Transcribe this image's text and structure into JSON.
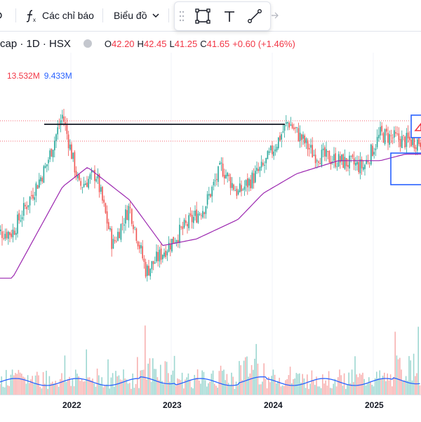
{
  "toolbar": {
    "indicators_label": "Các chỉ báo",
    "chart_type_label": "Biểu đồ"
  },
  "legend": {
    "symbol": "cap · 1D · HSX",
    "o_label": "O",
    "o_value": "42.20",
    "h_label": "H",
    "h_value": "42.45",
    "l_label": "L",
    "l_value": "41.25",
    "c_label": "C",
    "c_value": "41.65",
    "change": "+0.60 (+1.46%)"
  },
  "volume": {
    "value1": "13.532M",
    "value2": "9.433M"
  },
  "x_axis": {
    "labels": [
      "2022",
      "2023",
      "2024",
      "2025"
    ]
  },
  "colors": {
    "up": "#26a69a",
    "down": "#ef5350",
    "ma": "#9c27b0",
    "vol_ma": "#2962ff",
    "accent_red": "#f23645",
    "accent_blue": "#2962ff"
  },
  "chart_data": {
    "type": "candlestick",
    "symbol_interval": "1D",
    "exchange": "HSX",
    "note_values_unit": "price",
    "price_key_points": [
      {
        "x": "2021-06",
        "price": 23
      },
      {
        "x": "2021-10",
        "price": 33
      },
      {
        "x": "2021-12",
        "price": 41
      },
      {
        "x": "2022-02",
        "price": 30
      },
      {
        "x": "2022-04",
        "price": 32
      },
      {
        "x": "2022-06",
        "price": 21
      },
      {
        "x": "2022-08",
        "price": 27
      },
      {
        "x": "2022-10",
        "price": 17
      },
      {
        "x": "2023-02",
        "price": 23
      },
      {
        "x": "2023-05",
        "price": 27
      },
      {
        "x": "2023-07",
        "price": 33
      },
      {
        "x": "2023-09",
        "price": 29
      },
      {
        "x": "2023-12",
        "price": 33
      },
      {
        "x": "2024-03",
        "price": 40
      },
      {
        "x": "2024-06",
        "price": 35
      },
      {
        "x": "2024-09",
        "price": 34
      },
      {
        "x": "2024-12",
        "price": 33
      },
      {
        "x": "2025-02",
        "price": 38
      },
      {
        "x": "2025-05",
        "price": 37
      }
    ],
    "moving_average_key_points": [
      {
        "x": "2021-06",
        "price": 16
      },
      {
        "x": "2021-12",
        "price": 30
      },
      {
        "x": "2022-03",
        "price": 33
      },
      {
        "x": "2022-08",
        "price": 28
      },
      {
        "x": "2022-12",
        "price": 21
      },
      {
        "x": "2023-04",
        "price": 22
      },
      {
        "x": "2023-09",
        "price": 25
      },
      {
        "x": "2023-12",
        "price": 29
      },
      {
        "x": "2024-04",
        "price": 32
      },
      {
        "x": "2024-09",
        "price": 34
      },
      {
        "x": "2025-02",
        "price": 34
      },
      {
        "x": "2025-05",
        "price": 35
      }
    ],
    "horizontal_line_price": 41,
    "legend": [
      "13.532M",
      "9.433M"
    ]
  }
}
